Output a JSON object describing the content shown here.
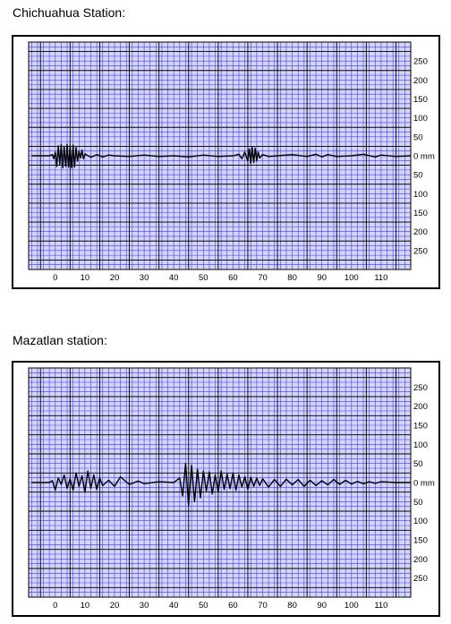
{
  "stations": [
    {
      "title": "Chichuahua Station:"
    },
    {
      "title": "Mazatlan station:"
    }
  ],
  "colors": {
    "minor_grid": "#3b3bff",
    "major_grid": "#000000",
    "background": "#d6d6f2",
    "trace": "#000000",
    "frame": "#000000"
  },
  "chart_data": [
    {
      "type": "line",
      "title": "Chichuahua Station:",
      "xlabel": "",
      "ylabel": "",
      "x_ticks": [
        "0",
        "10",
        "20",
        "30",
        "40",
        "50",
        "60",
        "70",
        "80",
        "90",
        "100",
        "110"
      ],
      "y_ticks_up": [
        "250",
        "200",
        "150",
        "100",
        "50"
      ],
      "y_ticks_down": [
        "50",
        "100",
        "150",
        "200",
        "250"
      ],
      "y_zero_label": "0 mm",
      "xlim": [
        -9,
        120
      ],
      "ylim": [
        -300,
        300
      ],
      "grid": true,
      "series": [
        {
          "x": [
            -8,
            -2,
            -1,
            -0.5,
            0,
            0.5,
            1,
            1.5,
            2,
            2.5,
            3,
            3.5,
            4,
            4.5,
            5,
            5.5,
            6,
            6.5,
            7,
            7.5,
            8,
            8.5,
            9,
            9.5,
            10,
            12,
            14,
            16,
            18,
            20,
            25,
            30,
            35,
            40,
            45,
            50,
            55,
            60,
            62,
            63,
            64,
            65,
            65.5,
            66,
            66.5,
            67,
            67.5,
            68,
            68.5,
            69,
            70,
            72,
            75,
            80,
            85,
            88,
            90,
            92,
            95,
            100,
            104,
            108,
            110,
            115,
            120
          ],
          "y": [
            0,
            0,
            3,
            -8,
            10,
            -28,
            26,
            -22,
            30,
            -32,
            24,
            -28,
            30,
            -30,
            26,
            -32,
            28,
            -30,
            22,
            -14,
            12,
            -6,
            15,
            -8,
            5,
            -4,
            3,
            -3,
            2,
            0,
            -2,
            2,
            -2,
            0,
            -3,
            2,
            -2,
            0,
            4,
            -8,
            10,
            -14,
            18,
            -20,
            22,
            -18,
            20,
            -14,
            10,
            -6,
            3,
            -2,
            0,
            3,
            -2,
            4,
            -3,
            3,
            -2,
            0,
            4,
            -3,
            2,
            -2,
            0
          ]
        }
      ]
    },
    {
      "type": "line",
      "title": "Mazatlan station:",
      "xlabel": "",
      "ylabel": "",
      "x_ticks": [
        "0",
        "10",
        "20",
        "30",
        "40",
        "50",
        "60",
        "70",
        "80",
        "90",
        "100",
        "110"
      ],
      "y_ticks_up": [
        "250",
        "200",
        "150",
        "100",
        "50"
      ],
      "y_ticks_down": [
        "50",
        "100",
        "150",
        "200",
        "250"
      ],
      "y_zero_label": "0 mm",
      "xlim": [
        -9,
        120
      ],
      "ylim": [
        -300,
        300
      ],
      "grid": true,
      "series": [
        {
          "x": [
            -8,
            -2,
            -1,
            0,
            1,
            2,
            3,
            4,
            5,
            6,
            7,
            8,
            9,
            10,
            11,
            12,
            13,
            14,
            15,
            16,
            18,
            20,
            22,
            25,
            28,
            30,
            35,
            40,
            42,
            43,
            44,
            45,
            46,
            47,
            48,
            49,
            50,
            51,
            52,
            53,
            54,
            55,
            56,
            57,
            58,
            59,
            60,
            61,
            62,
            63,
            64,
            65,
            66,
            67,
            68,
            69,
            70,
            72,
            74,
            76,
            78,
            80,
            82,
            84,
            86,
            88,
            90,
            92,
            94,
            96,
            98,
            100,
            102,
            104,
            106,
            108,
            110,
            115,
            120
          ],
          "y": [
            0,
            0,
            5,
            -20,
            12,
            -5,
            20,
            -15,
            10,
            -20,
            25,
            -10,
            18,
            -25,
            30,
            -15,
            20,
            -18,
            12,
            -8,
            6,
            -10,
            15,
            -5,
            4,
            -3,
            2,
            0,
            12,
            -35,
            50,
            -60,
            45,
            -50,
            35,
            -40,
            30,
            -22,
            28,
            -30,
            20,
            -25,
            30,
            -18,
            22,
            -16,
            25,
            -20,
            20,
            -12,
            15,
            -18,
            14,
            -10,
            12,
            -8,
            10,
            -12,
            8,
            -10,
            9,
            -6,
            8,
            -10,
            6,
            -8,
            5,
            -6,
            8,
            -5,
            6,
            -4,
            3,
            -3,
            2,
            -2,
            2,
            0,
            0
          ]
        }
      ]
    }
  ]
}
